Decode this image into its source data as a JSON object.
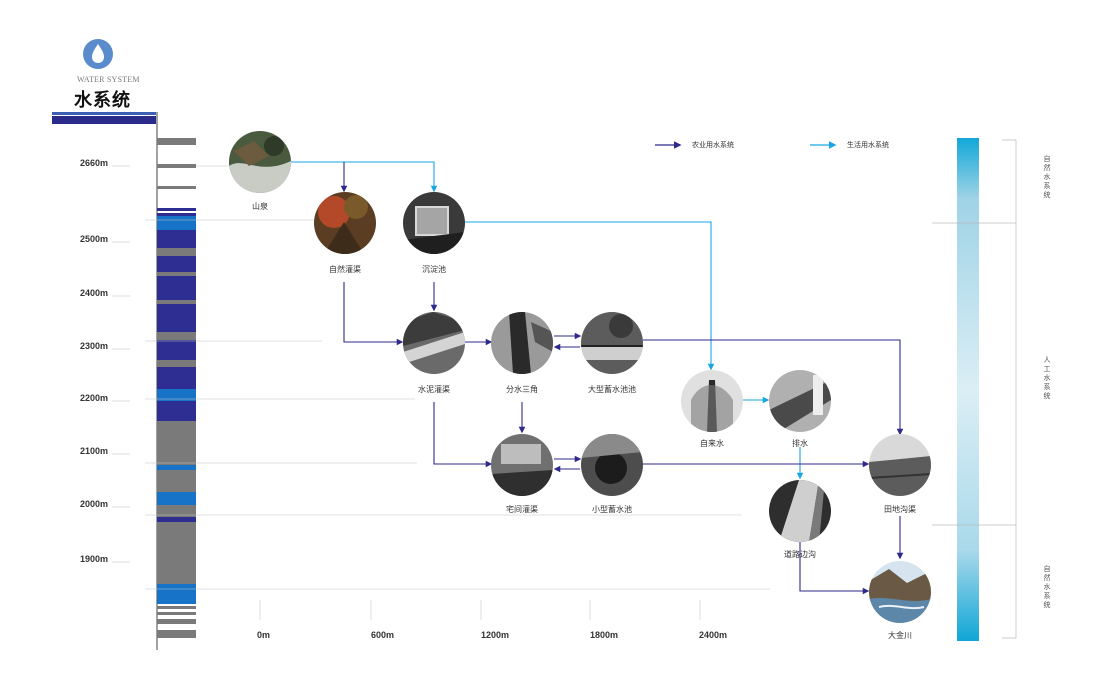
{
  "logo": {
    "icon": "water-drop-icon",
    "en": "WATER SYSTEM",
    "cn": "水系统"
  },
  "colors": {
    "agri": "#2d2a8a",
    "life": "#1aa6e3",
    "elev_dark": "#2e2e92",
    "elev_light": "#1773c8",
    "elev_gray": "#7a7a7a"
  },
  "legend": {
    "agri": "农业用水系统",
    "life": "生活用水系统"
  },
  "elevations": [
    "2660m",
    "2500m",
    "2400m",
    "2300m",
    "2200m",
    "2100m",
    "2000m",
    "1900m"
  ],
  "distances": [
    "0m",
    "600m",
    "1200m",
    "1800m",
    "2400m"
  ],
  "nodes": {
    "spring": "山泉",
    "natural_canal": "自然灌渠",
    "settling": "沉淀池",
    "concrete_canal": "水泥灌渠",
    "diversion": "分水三角",
    "large_pool": "大型蓄水池池",
    "tap_water": "自来水",
    "drainage": "排水",
    "house_canal": "宅间灌渠",
    "small_pool": "小型蓄水池",
    "road_ditch": "道路边沟",
    "field_ditch": "田地沟渠",
    "river": "大金川"
  },
  "side": {
    "top": "自然水系统",
    "middle": "人工水系统",
    "bottom": "自然水系统"
  }
}
